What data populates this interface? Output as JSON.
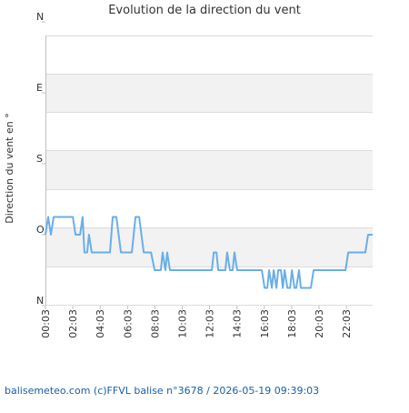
{
  "chart_data": {
    "type": "line",
    "title": "Evolution de la direction du vent",
    "y_label": "Direction du vent en °",
    "footer": "balisemeteo.com (c)FFVL balise n°3678 / 2026-05-19 09:39:03",
    "y_inverted": true,
    "ylim": [
      0,
      360
    ],
    "yticks": [
      {
        "value": 0,
        "label": "N"
      },
      {
        "value": 90,
        "label": "E"
      },
      {
        "value": 180,
        "label": "S"
      },
      {
        "value": 270,
        "label": "O"
      },
      {
        "value": 360,
        "label": "N"
      }
    ],
    "xlim": [
      "00:03",
      "23:58"
    ],
    "xticks": [
      "00:03",
      "02:03",
      "04:03",
      "06:03",
      "08:03",
      "10:03",
      "12:03",
      "14:03",
      "16:03",
      "18:03",
      "20:03",
      "22:03"
    ],
    "x": [
      "00:03",
      "00:15",
      "00:27",
      "00:39",
      "02:03",
      "02:15",
      "02:35",
      "02:46",
      "02:54",
      "03:06",
      "03:14",
      "03:26",
      "04:46",
      "04:58",
      "05:14",
      "05:34",
      "06:22",
      "06:38",
      "06:54",
      "07:14",
      "07:46",
      "08:02",
      "08:29",
      "08:37",
      "08:49",
      "08:57",
      "09:09",
      "12:13",
      "12:21",
      "12:33",
      "12:41",
      "13:12",
      "13:20",
      "13:32",
      "13:44",
      "13:52",
      "14:04",
      "15:52",
      "16:04",
      "16:16",
      "16:24",
      "16:36",
      "16:44",
      "16:56",
      "17:04",
      "17:16",
      "17:24",
      "17:32",
      "17:44",
      "17:56",
      "18:04",
      "18:15",
      "18:23",
      "18:35",
      "18:43",
      "19:27",
      "19:39",
      "21:59",
      "22:11",
      "23:26",
      "23:38",
      "23:58"
    ],
    "series": [
      {
        "color": "#6aaee8",
        "values": [
          270,
          247.5,
          270,
          247.5,
          247.5,
          270,
          270,
          247.5,
          292.5,
          292.5,
          270,
          292.5,
          292.5,
          247.5,
          247.5,
          292.5,
          292.5,
          247.5,
          247.5,
          292.5,
          292.5,
          315,
          315,
          292.5,
          315,
          292.5,
          315,
          315,
          292.5,
          292.5,
          315,
          315,
          292.5,
          315,
          315,
          292.5,
          315,
          315,
          337.5,
          337.5,
          315,
          337.5,
          315,
          337.5,
          315,
          315,
          337.5,
          315,
          337.5,
          337.5,
          315,
          337.5,
          337.5,
          315,
          337.5,
          337.5,
          315,
          315,
          292.5,
          292.5,
          270,
          270
        ]
      }
    ]
  }
}
